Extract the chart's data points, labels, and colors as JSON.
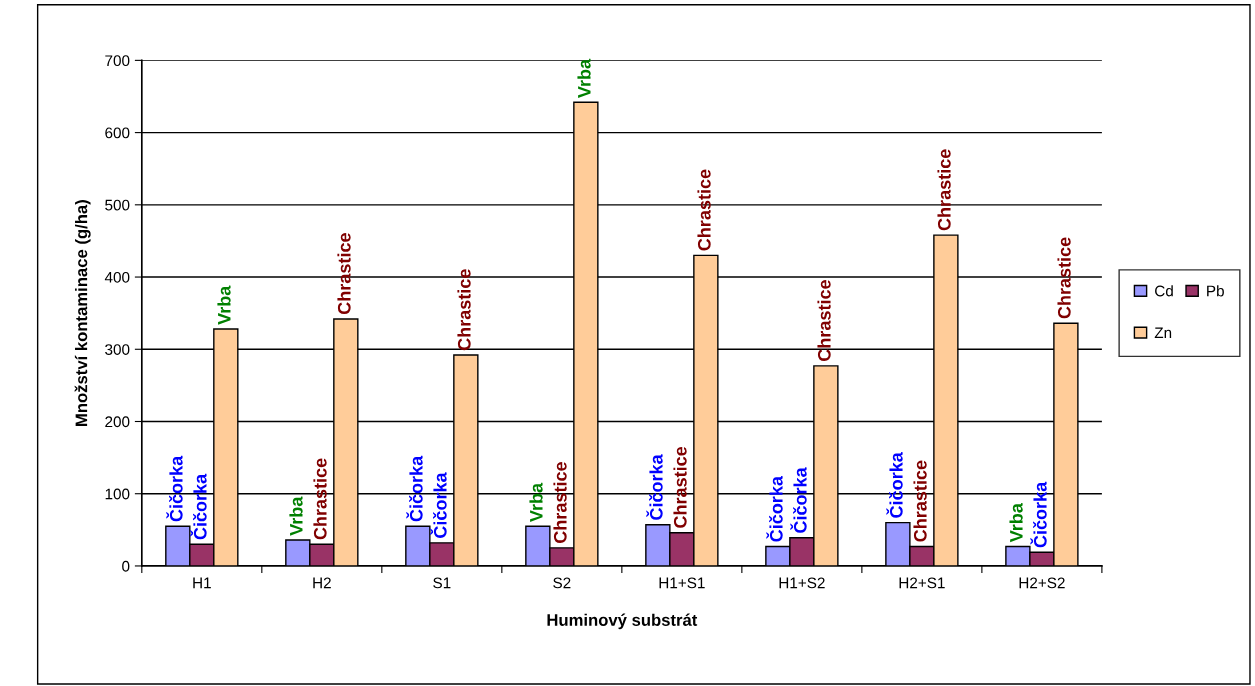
{
  "chart_data": {
    "type": "bar",
    "xlabel": "Huminový substrát",
    "ylabel": "Množství kontaminace (g/ha)",
    "categories": [
      "H1",
      "H2",
      "S1",
      "S2",
      "H1+S1",
      "H1+S2",
      "H2+S1",
      "H2+S2"
    ],
    "series": [
      {
        "name": "Cd",
        "color": "#9999ff",
        "values": [
          55,
          36,
          55,
          55,
          57,
          27,
          60,
          27
        ],
        "value_labels": [
          "Čičorka",
          "Vrba",
          "Čičorka",
          "Vrba",
          "Čičorka",
          "Čičorka",
          "Čičorka",
          "Vrba"
        ]
      },
      {
        "name": "Pb",
        "color": "#993366",
        "values": [
          30,
          30,
          32,
          25,
          46,
          39,
          27,
          19
        ],
        "value_labels": [
          "Čičorka",
          "Chrastice",
          "Čičorka",
          "Chrastice",
          "Chrastice",
          "Čičorka",
          "Chrastice",
          "Čičorka"
        ]
      },
      {
        "name": "Zn",
        "color": "#ffcc99",
        "values": [
          328,
          342,
          292,
          642,
          430,
          277,
          458,
          336
        ],
        "value_labels": [
          "Vrba",
          "Chrastice",
          "Chrastice",
          "Vrba",
          "Chrastice",
          "Chrastice",
          "Chrastice",
          "Chrastice"
        ]
      }
    ],
    "ylim": [
      0,
      700
    ],
    "yticks": [
      0,
      100,
      200,
      300,
      400,
      500,
      600,
      700
    ],
    "grid": "y",
    "legend": "right"
  }
}
